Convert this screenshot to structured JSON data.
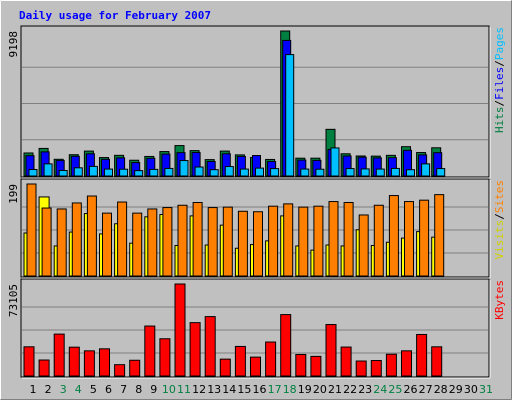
{
  "chart_data": {
    "type": "bar",
    "title": "Daily usage for February 2007",
    "x": [
      1,
      2,
      3,
      4,
      5,
      6,
      7,
      8,
      9,
      10,
      11,
      12,
      13,
      14,
      15,
      16,
      17,
      18,
      19,
      20,
      21,
      22,
      23,
      24,
      25,
      26,
      27,
      28,
      29,
      30,
      31
    ],
    "weekend_days": [
      3,
      4,
      10,
      11,
      17,
      18,
      24,
      25,
      31
    ],
    "colors": {
      "title": "#0000ff",
      "weekend": "#008040",
      "background": "#c0c0c0",
      "hits": "#008040",
      "files": "#0000ff",
      "pages": "#00c0ff",
      "visits": "#ffff00",
      "sites": "#ff8000",
      "kbytes": "#ff0000"
    },
    "panels": [
      {
        "id": "hits",
        "ymax_label": "9198",
        "ymax": 9198,
        "legend": [
          {
            "text": "Hits",
            "color": "#008040"
          },
          {
            "text": "/",
            "color": "#000000"
          },
          {
            "text": "Files",
            "color": "#0000ff"
          },
          {
            "text": "/",
            "color": "#000000"
          },
          {
            "text": "Pages",
            "color": "#00c0ff"
          }
        ],
        "series": [
          {
            "name": "Hits",
            "color": "#008040",
            "values": [
              1460,
              1750,
              1060,
              1350,
              1580,
              1170,
              1310,
              1000,
              1240,
              1550,
              1930,
              1610,
              1040,
              1580,
              1340,
              1170,
              1050,
              9198,
              1130,
              1130,
              2960,
              1410,
              1270,
              1260,
              1310,
              1860,
              1490,
              1790,
              0,
              0,
              0
            ]
          },
          {
            "name": "Files",
            "color": "#0000ff",
            "values": [
              1290,
              1530,
              980,
              1250,
              1410,
              1060,
              1150,
              850,
              1120,
              1390,
              1480,
              1490,
              920,
              1410,
              1240,
              1300,
              920,
              8600,
              1010,
              990,
              1680,
              1270,
              1190,
              1150,
              1160,
              1630,
              1340,
              1480,
              0,
              0,
              0
            ]
          },
          {
            "name": "Pages",
            "color": "#00c0ff",
            "values": [
              410,
              770,
              350,
              520,
              610,
              440,
              430,
              340,
              420,
              480,
              980,
              570,
              400,
              600,
              440,
              500,
              470,
              7700,
              440,
              430,
              1780,
              470,
              450,
              440,
              480,
              400,
              770,
              470,
              0,
              0,
              0
            ]
          }
        ]
      },
      {
        "id": "visits",
        "ymax_label": "199",
        "ymax": 199,
        "legend": [
          {
            "text": "Visits",
            "color": "#d0d000"
          },
          {
            "text": "/",
            "color": "#000000"
          },
          {
            "text": "Sites",
            "color": "#ff8000"
          }
        ],
        "series": [
          {
            "name": "Visits",
            "color": "#ffff00",
            "values": [
              93,
              171,
              65,
              95,
              135,
              91,
              113,
              71,
              128,
              133,
              66,
              130,
              67,
              110,
              60,
              68,
              76,
              130,
              65,
              56,
              67,
              65,
              100,
              66,
              73,
              82,
              96,
              84,
              0,
              0,
              0
            ]
          },
          {
            "name": "Sites",
            "color": "#ff8000",
            "values": [
              199,
              147,
              145,
              158,
              173,
              136,
              160,
              136,
              145,
              148,
              153,
              159,
              148,
              149,
              140,
              139,
              151,
              156,
              149,
              151,
              161,
              159,
              132,
              153,
              174,
              161,
              164,
              176,
              0,
              0,
              0
            ]
          }
        ]
      },
      {
        "id": "kbytes",
        "ymax_label": "73105",
        "ymax": 73105,
        "legend": [
          {
            "text": "KBytes",
            "color": "#ff0000"
          }
        ],
        "series": [
          {
            "name": "KBytes",
            "color": "#ff0000",
            "values": [
              23200,
              12700,
              33300,
              22900,
              20000,
              21600,
              9000,
              12500,
              39700,
              29600,
              73105,
              42400,
              47200,
              13400,
              23500,
              15000,
              27000,
              48800,
              17100,
              15600,
              40900,
              23000,
              11900,
              12300,
              17300,
              20000,
              33000,
              23200,
              0,
              0,
              0
            ]
          }
        ]
      }
    ]
  }
}
